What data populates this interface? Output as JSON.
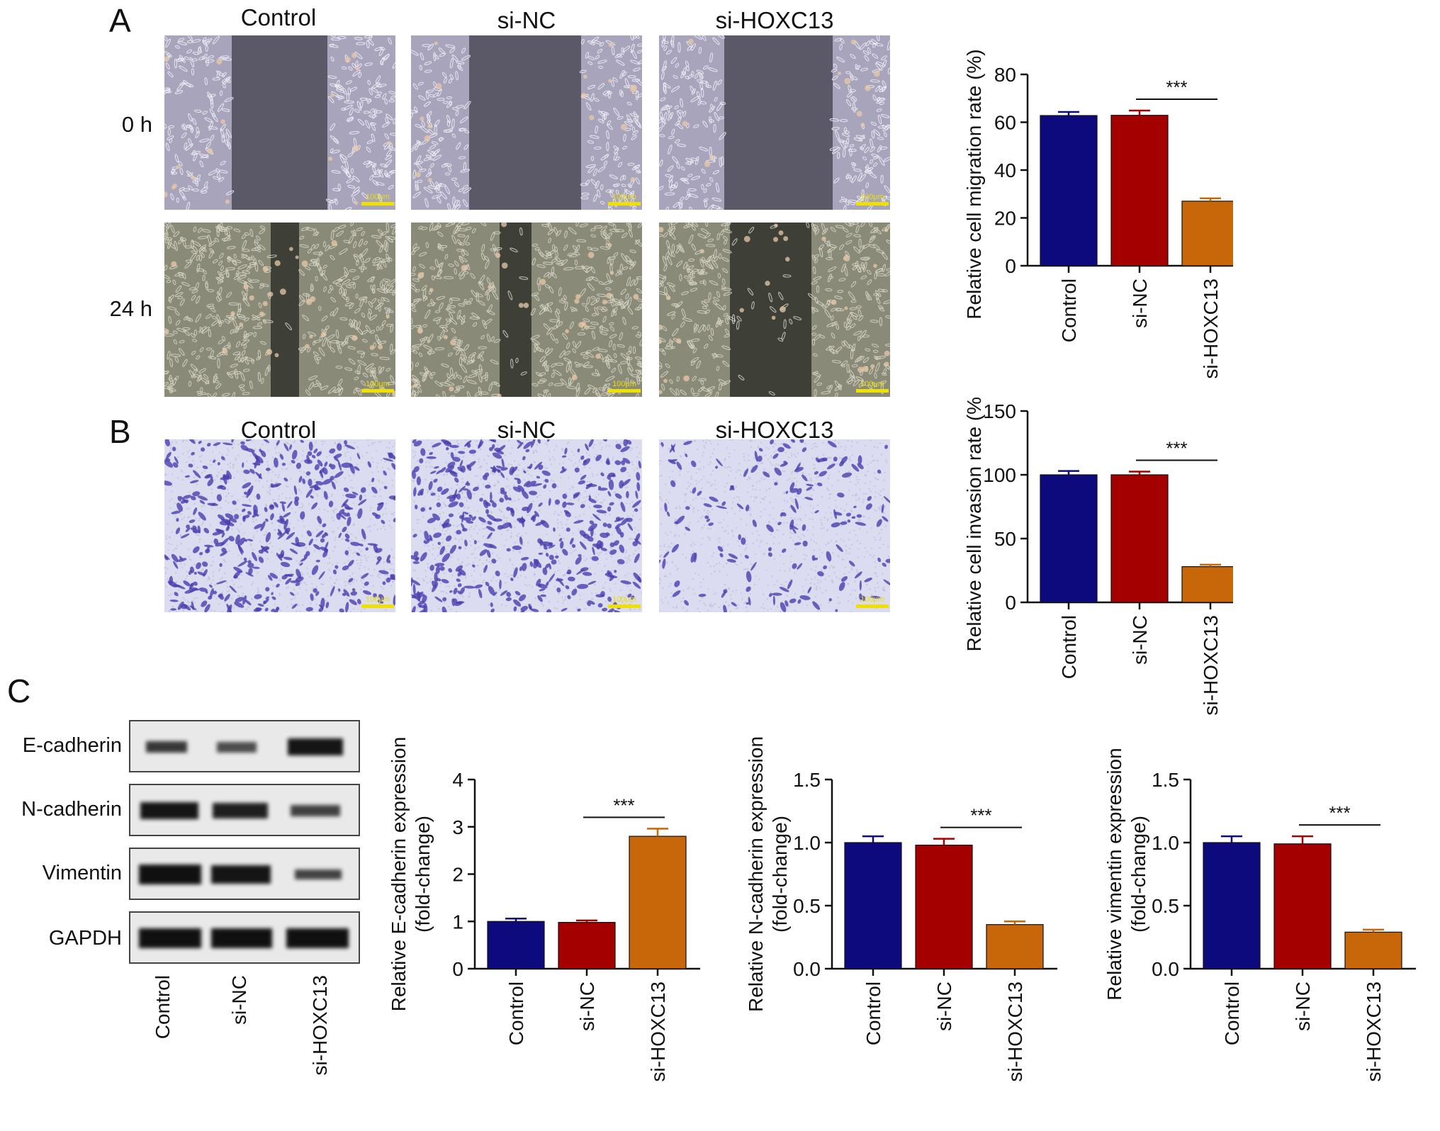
{
  "panels": {
    "a_letter": "A",
    "b_letter": "B",
    "c_letter": "C"
  },
  "groups": [
    "Control",
    "si-NC",
    "si-HOXC13"
  ],
  "group_colors": [
    "#0d0a7d",
    "#a50000",
    "#c8660a"
  ],
  "timepoints": [
    "0 h",
    "24 h"
  ],
  "scale_bar_label": "100μm",
  "blot_proteins": [
    "E-cadherin",
    "N-cadherin",
    "Vimentin",
    "GAPDH"
  ],
  "significance": "***",
  "chart_data": [
    {
      "type": "bar",
      "categories": [
        "Control",
        "si-NC",
        "si-HOXC13"
      ],
      "values": [
        62.8,
        62.9,
        27.0
      ],
      "errors": [
        1.5,
        2.0,
        1.2
      ],
      "ylabel": "Relative cell migration rate (%)",
      "ylim": [
        0,
        80
      ],
      "yticks": [
        "0",
        "20",
        "40",
        "60",
        "80"
      ],
      "annotation": "***"
    },
    {
      "type": "bar",
      "categories": [
        "Control",
        "si-NC",
        "si-HOXC13"
      ],
      "values": [
        100,
        100,
        28
      ],
      "errors": [
        3,
        2.5,
        1.5
      ],
      "ylabel": "Relative cell invasion rate (%)",
      "ylim": [
        0,
        150
      ],
      "yticks": [
        "0",
        "50",
        "100",
        "150"
      ],
      "annotation": "***"
    },
    {
      "type": "bar",
      "categories": [
        "Control",
        "si-NC",
        "si-HOXC13"
      ],
      "values": [
        1.0,
        0.98,
        2.8
      ],
      "errors": [
        0.06,
        0.04,
        0.16
      ],
      "ylabel": "Relative E-cadherin expression",
      "ylabel2": "(fold-change)",
      "ylim": [
        0,
        4
      ],
      "yticks": [
        "0",
        "1",
        "2",
        "3",
        "4"
      ],
      "annotation": "***"
    },
    {
      "type": "bar",
      "categories": [
        "Control",
        "si-NC",
        "si-HOXC13"
      ],
      "values": [
        1.0,
        0.98,
        0.35
      ],
      "errors": [
        0.05,
        0.05,
        0.025
      ],
      "ylabel": "Relative N-cadherin expression",
      "ylabel2": "(fold-change)",
      "ylim": [
        0,
        1.5
      ],
      "yticks": [
        "0.0",
        "0.5",
        "1.0",
        "1.5"
      ],
      "annotation": "***"
    },
    {
      "type": "bar",
      "categories": [
        "Control",
        "si-NC",
        "si-HOXC13"
      ],
      "values": [
        1.0,
        0.99,
        0.29
      ],
      "errors": [
        0.05,
        0.06,
        0.02
      ],
      "ylabel": "Relative vimentin expression",
      "ylabel2": "(fold-change)",
      "ylim": [
        0,
        1.5
      ],
      "yticks": [
        "0.0",
        "0.5",
        "1.0",
        "1.5"
      ],
      "annotation": "***"
    }
  ]
}
